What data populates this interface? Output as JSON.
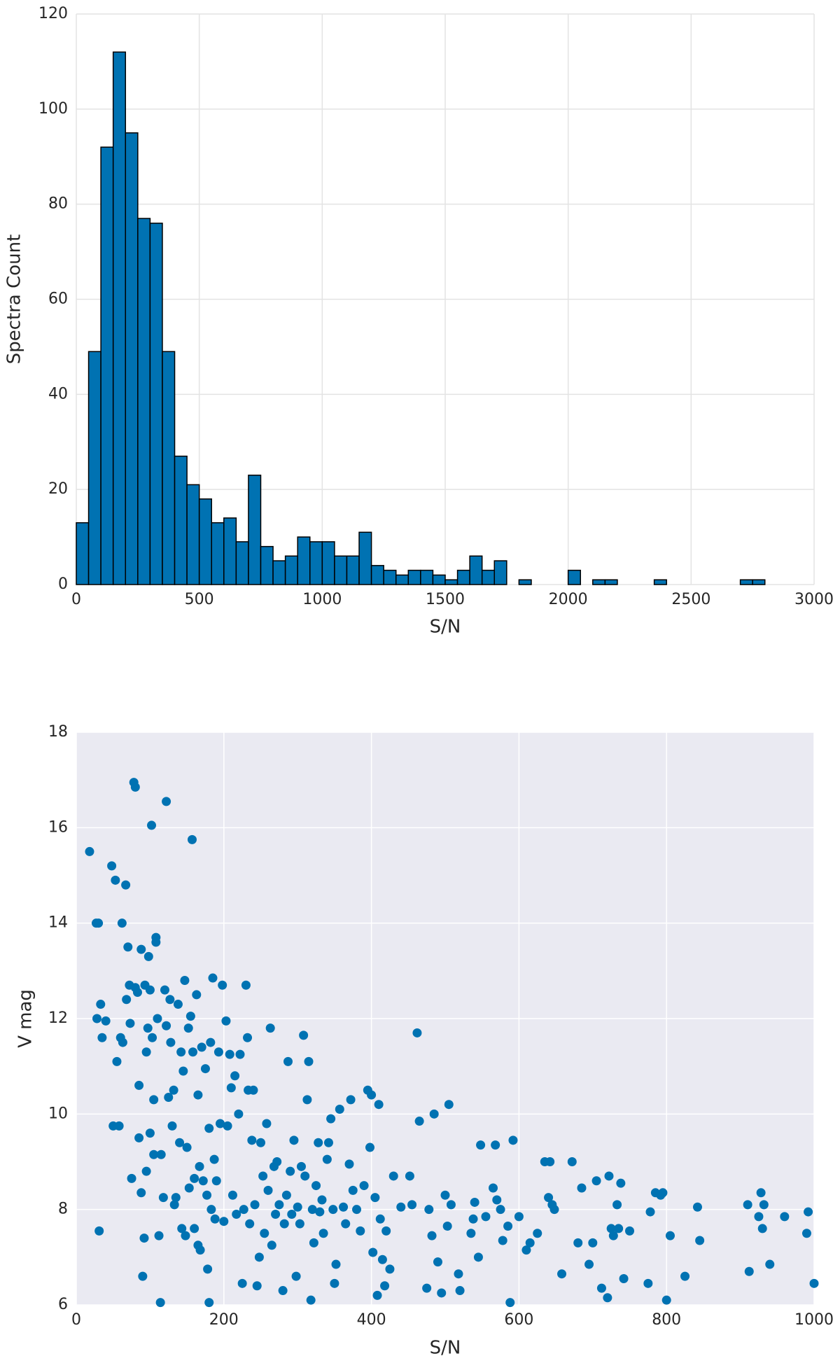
{
  "chart_data": [
    {
      "type": "histogram",
      "xlabel": "S/N",
      "ylabel": "Spectra Count",
      "color": "#0072b2",
      "edgecolor": "#000000",
      "grid": true,
      "bins": [
        0,
        50,
        100,
        150,
        200,
        250,
        300,
        350,
        400,
        450,
        500,
        550,
        600,
        650,
        700,
        750,
        800,
        850,
        900,
        950,
        1000,
        1050,
        1100,
        1150,
        1200,
        1250,
        1300,
        1350,
        1400,
        1450,
        1500,
        1550,
        1600,
        1650,
        1700,
        1750,
        1800,
        1850,
        1900,
        1950,
        2000,
        2050,
        2100,
        2150,
        2200,
        2250,
        2300,
        2350,
        2400,
        2450,
        2500,
        2550,
        2600,
        2650,
        2700,
        2750,
        2800
      ],
      "values": [
        13,
        49,
        92,
        112,
        95,
        77,
        76,
        49,
        27,
        21,
        18,
        13,
        14,
        9,
        23,
        8,
        5,
        6,
        10,
        9,
        9,
        6,
        6,
        11,
        4,
        3,
        2,
        3,
        3,
        2,
        1,
        3,
        6,
        3,
        5,
        0,
        1,
        0,
        0,
        0,
        3,
        0,
        1,
        1,
        0,
        0,
        0,
        1,
        0,
        0,
        0,
        0,
        0,
        0,
        1,
        1
      ],
      "xlim": [
        0,
        3000
      ],
      "xticks": [
        0,
        500,
        1000,
        1500,
        2000,
        2500,
        3000
      ],
      "ylim": [
        0,
        120
      ],
      "yticks": [
        0,
        20,
        40,
        60,
        80,
        100,
        120
      ]
    },
    {
      "type": "scatter",
      "xlabel": "S/N",
      "ylabel": "V mag",
      "color": "#0072b2",
      "grid": true,
      "x": [
        18,
        27,
        30,
        31,
        33,
        28,
        35,
        40,
        48,
        50,
        53,
        55,
        58,
        60,
        62,
        63,
        67,
        68,
        70,
        72,
        73,
        75,
        78,
        80,
        80,
        83,
        85,
        85,
        88,
        88,
        90,
        92,
        93,
        95,
        95,
        97,
        98,
        100,
        100,
        102,
        103,
        105,
        105,
        108,
        108,
        110,
        112,
        114,
        115,
        118,
        120,
        122,
        122,
        125,
        127,
        128,
        130,
        132,
        133,
        135,
        138,
        140,
        142,
        143,
        145,
        147,
        148,
        150,
        152,
        153,
        155,
        157,
        158,
        160,
        160,
        163,
        165,
        165,
        167,
        168,
        170,
        172,
        175,
        177,
        178,
        180,
        180,
        182,
        183,
        185,
        187,
        188,
        190,
        193,
        195,
        198,
        200,
        203,
        205,
        208,
        210,
        212,
        215,
        217,
        220,
        222,
        225,
        227,
        230,
        232,
        233,
        235,
        238,
        240,
        242,
        245,
        248,
        250,
        253,
        255,
        258,
        260,
        263,
        265,
        268,
        270,
        272,
        275,
        280,
        282,
        285,
        287,
        290,
        292,
        295,
        298,
        300,
        303,
        305,
        308,
        310,
        313,
        315,
        318,
        320,
        322,
        325,
        328,
        330,
        333,
        335,
        340,
        342,
        345,
        348,
        350,
        352,
        357,
        362,
        365,
        370,
        372,
        375,
        380,
        385,
        390,
        395,
        398,
        400,
        402,
        405,
        408,
        410,
        412,
        415,
        418,
        420,
        425,
        430,
        440,
        452,
        455,
        462,
        465,
        475,
        478,
        482,
        485,
        490,
        495,
        500,
        503,
        505,
        508,
        518,
        520,
        535,
        538,
        540,
        545,
        548,
        555,
        565,
        568,
        570,
        575,
        578,
        585,
        588,
        592,
        600,
        610,
        615,
        625,
        635,
        640,
        642,
        645,
        648,
        658,
        672,
        680,
        685,
        695,
        700,
        705,
        712,
        720,
        722,
        725,
        728,
        733,
        735,
        738,
        742,
        750,
        775,
        778,
        785,
        792,
        795,
        800,
        805,
        825,
        842,
        845,
        910,
        912,
        925,
        928,
        930,
        932,
        940,
        960,
        990,
        992,
        1000
      ],
      "values": [
        15.5,
        14,
        14,
        7.55,
        12.3,
        12,
        11.6,
        11.95,
        15.2,
        9.75,
        14.9,
        11.1,
        9.75,
        11.6,
        14,
        11.5,
        14.8,
        12.4,
        13.5,
        12.7,
        11.9,
        8.65,
        16.95,
        16.85,
        12.65,
        12.55,
        10.6,
        9.5,
        13.45,
        8.35,
        6.6,
        7.4,
        12.7,
        11.3,
        8.8,
        11.8,
        13.3,
        12.6,
        9.6,
        16.05,
        11.6,
        10.3,
        9.15,
        13.7,
        13.6,
        12,
        7.45,
        6.05,
        9.15,
        8.25,
        12.6,
        16.55,
        11.85,
        10.35,
        12.4,
        11.5,
        9.75,
        10.5,
        8.1,
        8.25,
        12.3,
        9.4,
        11.3,
        7.6,
        10.9,
        12.8,
        7.45,
        9.3,
        11.8,
        8.45,
        12.05,
        15.75,
        11.3,
        8.65,
        7.6,
        12.5,
        10.4,
        7.25,
        8.9,
        7.15,
        11.4,
        8.6,
        10.95,
        8.3,
        6.75,
        6.05,
        9.7,
        11.5,
        8.0,
        12.85,
        9.05,
        7.8,
        8.6,
        11.3,
        9.8,
        12.7,
        7.75,
        11.95,
        9.75,
        11.25,
        10.55,
        8.3,
        10.8,
        7.9,
        10.0,
        11.25,
        6.45,
        8.0,
        12.7,
        11.6,
        10.5,
        7.7,
        9.45,
        10.5,
        8.1,
        6.4,
        7.0,
        9.4,
        8.7,
        7.5,
        9.8,
        8.4,
        11.8,
        7.25,
        8.9,
        7.9,
        9.0,
        8.1,
        6.3,
        7.7,
        8.3,
        11.1,
        8.8,
        7.9,
        9.45,
        6.6,
        8.05,
        7.7,
        8.9,
        11.65,
        8.7,
        10.3,
        11.1,
        6.1,
        8.0,
        7.3,
        8.5,
        9.4,
        7.95,
        8.2,
        7.5,
        9.05,
        9.4,
        9.9,
        8.0,
        6.45,
        6.85,
        10.1,
        8.05,
        7.7,
        8.95,
        10.3,
        8.4,
        8.0,
        7.55,
        8.5,
        10.5,
        9.3,
        10.4,
        7.1,
        8.25,
        6.2,
        10.2,
        7.8,
        6.95,
        6.4,
        7.55,
        6.75,
        8.7,
        8.05,
        8.7,
        8.1,
        11.7,
        9.85,
        6.35,
        8.0,
        7.45,
        10.0,
        6.9,
        6.25,
        8.3,
        7.65,
        10.2,
        8.1,
        6.65,
        6.3,
        7.5,
        7.8,
        8.15,
        7.0,
        9.35,
        7.85,
        8.45,
        9.35,
        8.2,
        8.0,
        7.35,
        7.65,
        6.05,
        9.45,
        7.85,
        7.15,
        7.3,
        7.5,
        9.0,
        8.25,
        9.0,
        8.1,
        8.0,
        6.65,
        9.0,
        7.3,
        8.45,
        6.85,
        7.3,
        8.6,
        6.35,
        6.15,
        8.7,
        7.6,
        7.45,
        8.1,
        7.6,
        8.55,
        6.55,
        7.55,
        6.45,
        7.95,
        8.35,
        8.3,
        8.35,
        6.1,
        7.45,
        6.6,
        8.05,
        7.35,
        8.1,
        6.7,
        7.85,
        8.35,
        7.6,
        8.1,
        6.85,
        7.85,
        7.5,
        7.95,
        6.45
      ],
      "xlim": [
        0,
        1000
      ],
      "xticks": [
        0,
        200,
        400,
        600,
        800,
        1000
      ],
      "ylim": [
        6,
        18
      ],
      "yticks": [
        6,
        8,
        10,
        12,
        14,
        16,
        18
      ]
    }
  ]
}
